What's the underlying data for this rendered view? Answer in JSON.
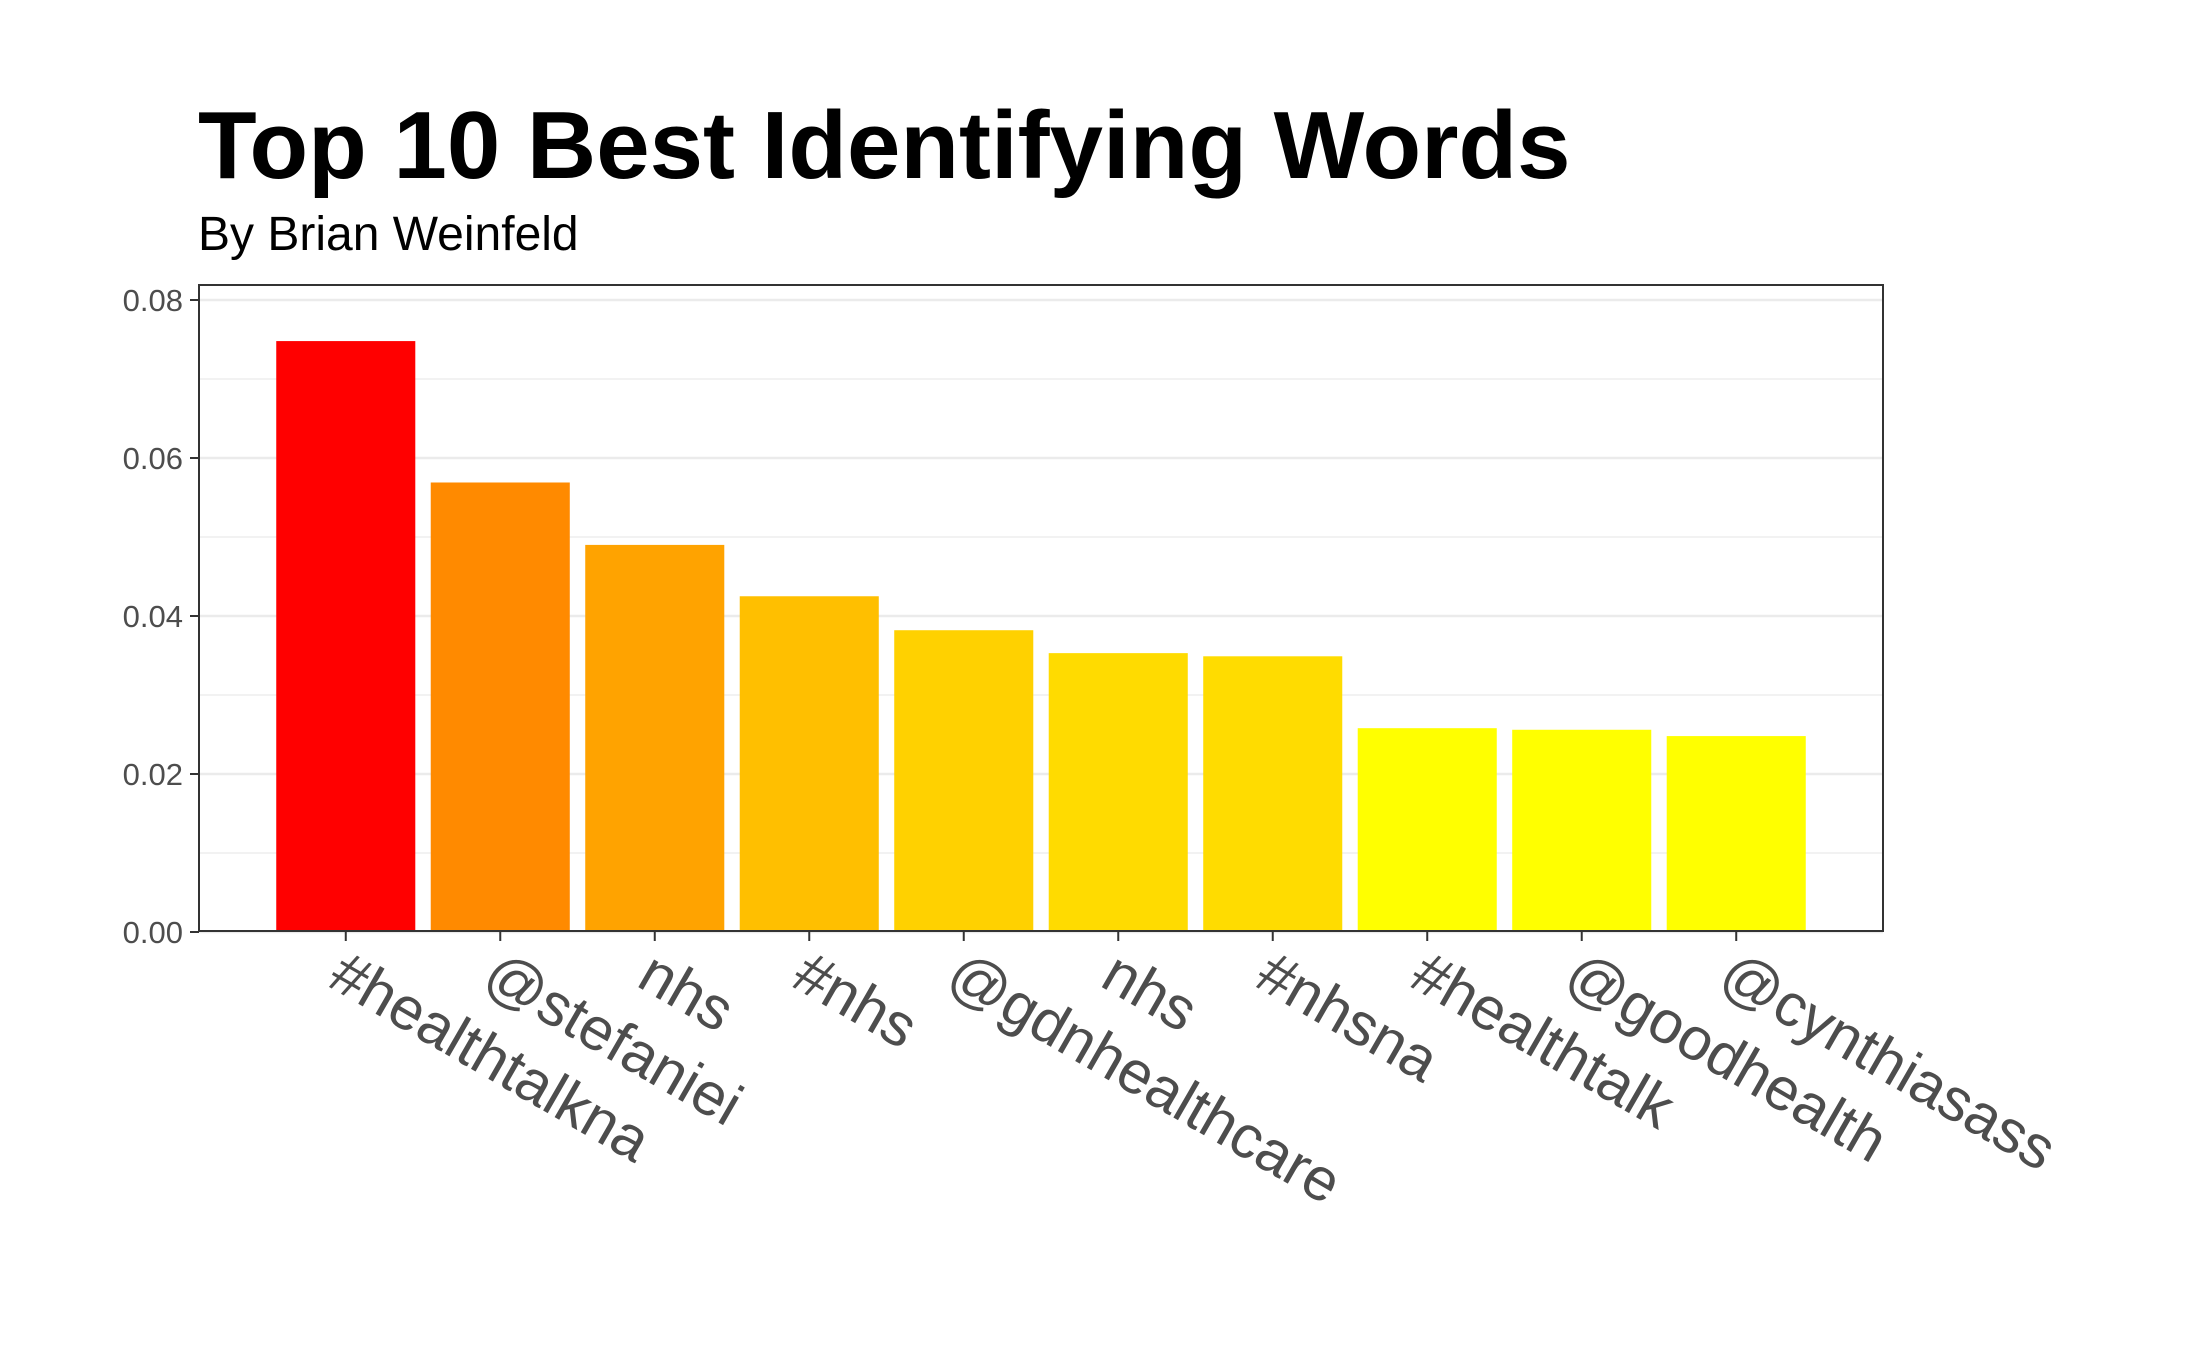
{
  "chart_data": {
    "type": "bar",
    "title": "Top 10 Best Identifying Words",
    "subtitle": "By Brian Weinfeld",
    "categories": [
      "#healthtalkna",
      "@stefaniei",
      "nhs",
      "#nhs",
      "@gdnhealthcare",
      "nhs",
      "#nhsna",
      "#healthtalk",
      "@goodhealth",
      "@cynthiasass"
    ],
    "values": [
      0.0748,
      0.0569,
      0.049,
      0.0425,
      0.0382,
      0.0353,
      0.0349,
      0.0258,
      0.0256,
      0.0248
    ],
    "colors": [
      "#ff0000",
      "#ff8a00",
      "#ffa300",
      "#ffbf00",
      "#ffd100",
      "#ffdb00",
      "#ffdc00",
      "#ffff00",
      "#ffff00",
      "#ffff00"
    ],
    "ylim": [
      0,
      0.082
    ],
    "yticks": [
      "0.00",
      "0.02",
      "0.04",
      "0.06",
      "0.08"
    ],
    "xlabel": "",
    "ylabel": "",
    "grid": true,
    "legend": "none"
  }
}
